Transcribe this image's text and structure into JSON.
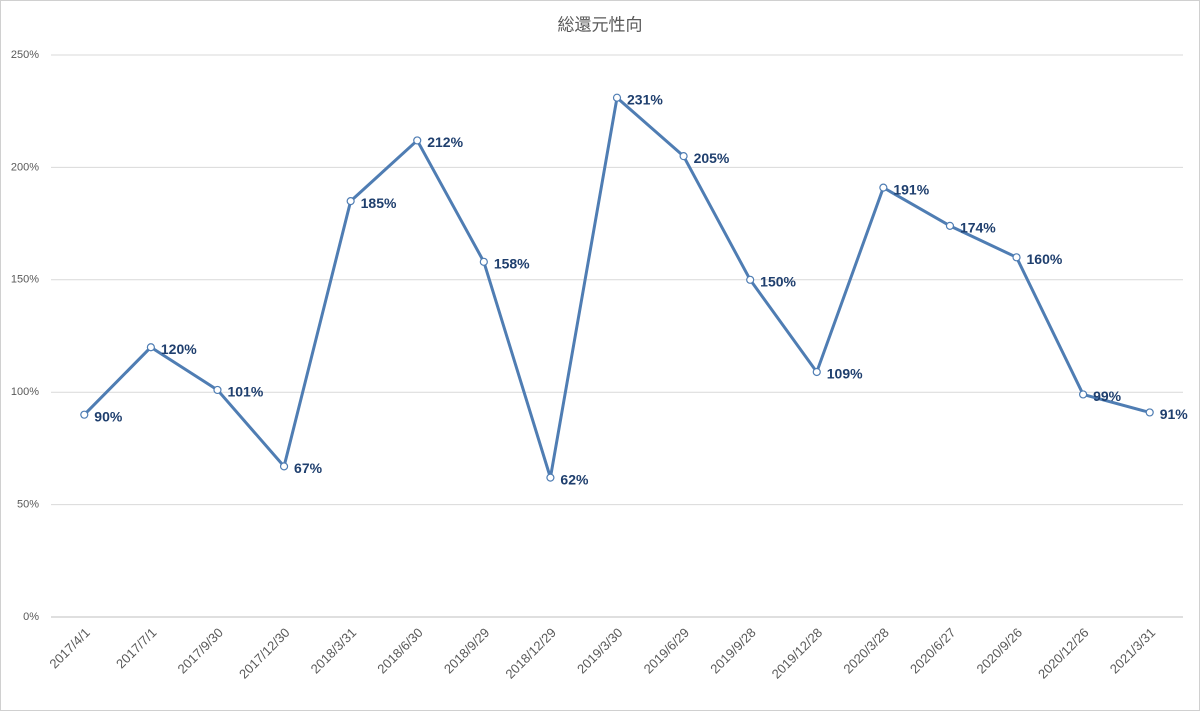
{
  "chart_data": {
    "type": "line",
    "title": "総還元性向",
    "categories": [
      "2017/4/1",
      "2017/7/1",
      "2017/9/30",
      "2017/12/30",
      "2018/3/31",
      "2018/6/30",
      "2018/9/29",
      "2018/12/29",
      "2019/3/30",
      "2019/6/29",
      "2019/9/28",
      "2019/12/28",
      "2020/3/28",
      "2020/6/27",
      "2020/9/26",
      "2020/12/26",
      "2021/3/31"
    ],
    "series": [
      {
        "color": "#4f7db3",
        "values": [
          90,
          120,
          101,
          67,
          185,
          212,
          158,
          62,
          231,
          205,
          150,
          109,
          191,
          174,
          160,
          99,
          91
        ],
        "value_labels": [
          "90%",
          "120%",
          "101%",
          "67%",
          "185%",
          "212%",
          "158%",
          "62%",
          "231%",
          "205%",
          "150%",
          "109%",
          "191%",
          "174%",
          "160%",
          "99%",
          "91%"
        ]
      }
    ],
    "ylim": [
      0,
      250
    ],
    "yticks": [
      {
        "value": 0,
        "label": "0%"
      },
      {
        "value": 50,
        "label": "50%"
      },
      {
        "value": 100,
        "label": "100%"
      },
      {
        "value": 150,
        "label": "150%"
      },
      {
        "value": 200,
        "label": "200%"
      },
      {
        "value": 250,
        "label": "250%"
      }
    ],
    "grid": true
  }
}
